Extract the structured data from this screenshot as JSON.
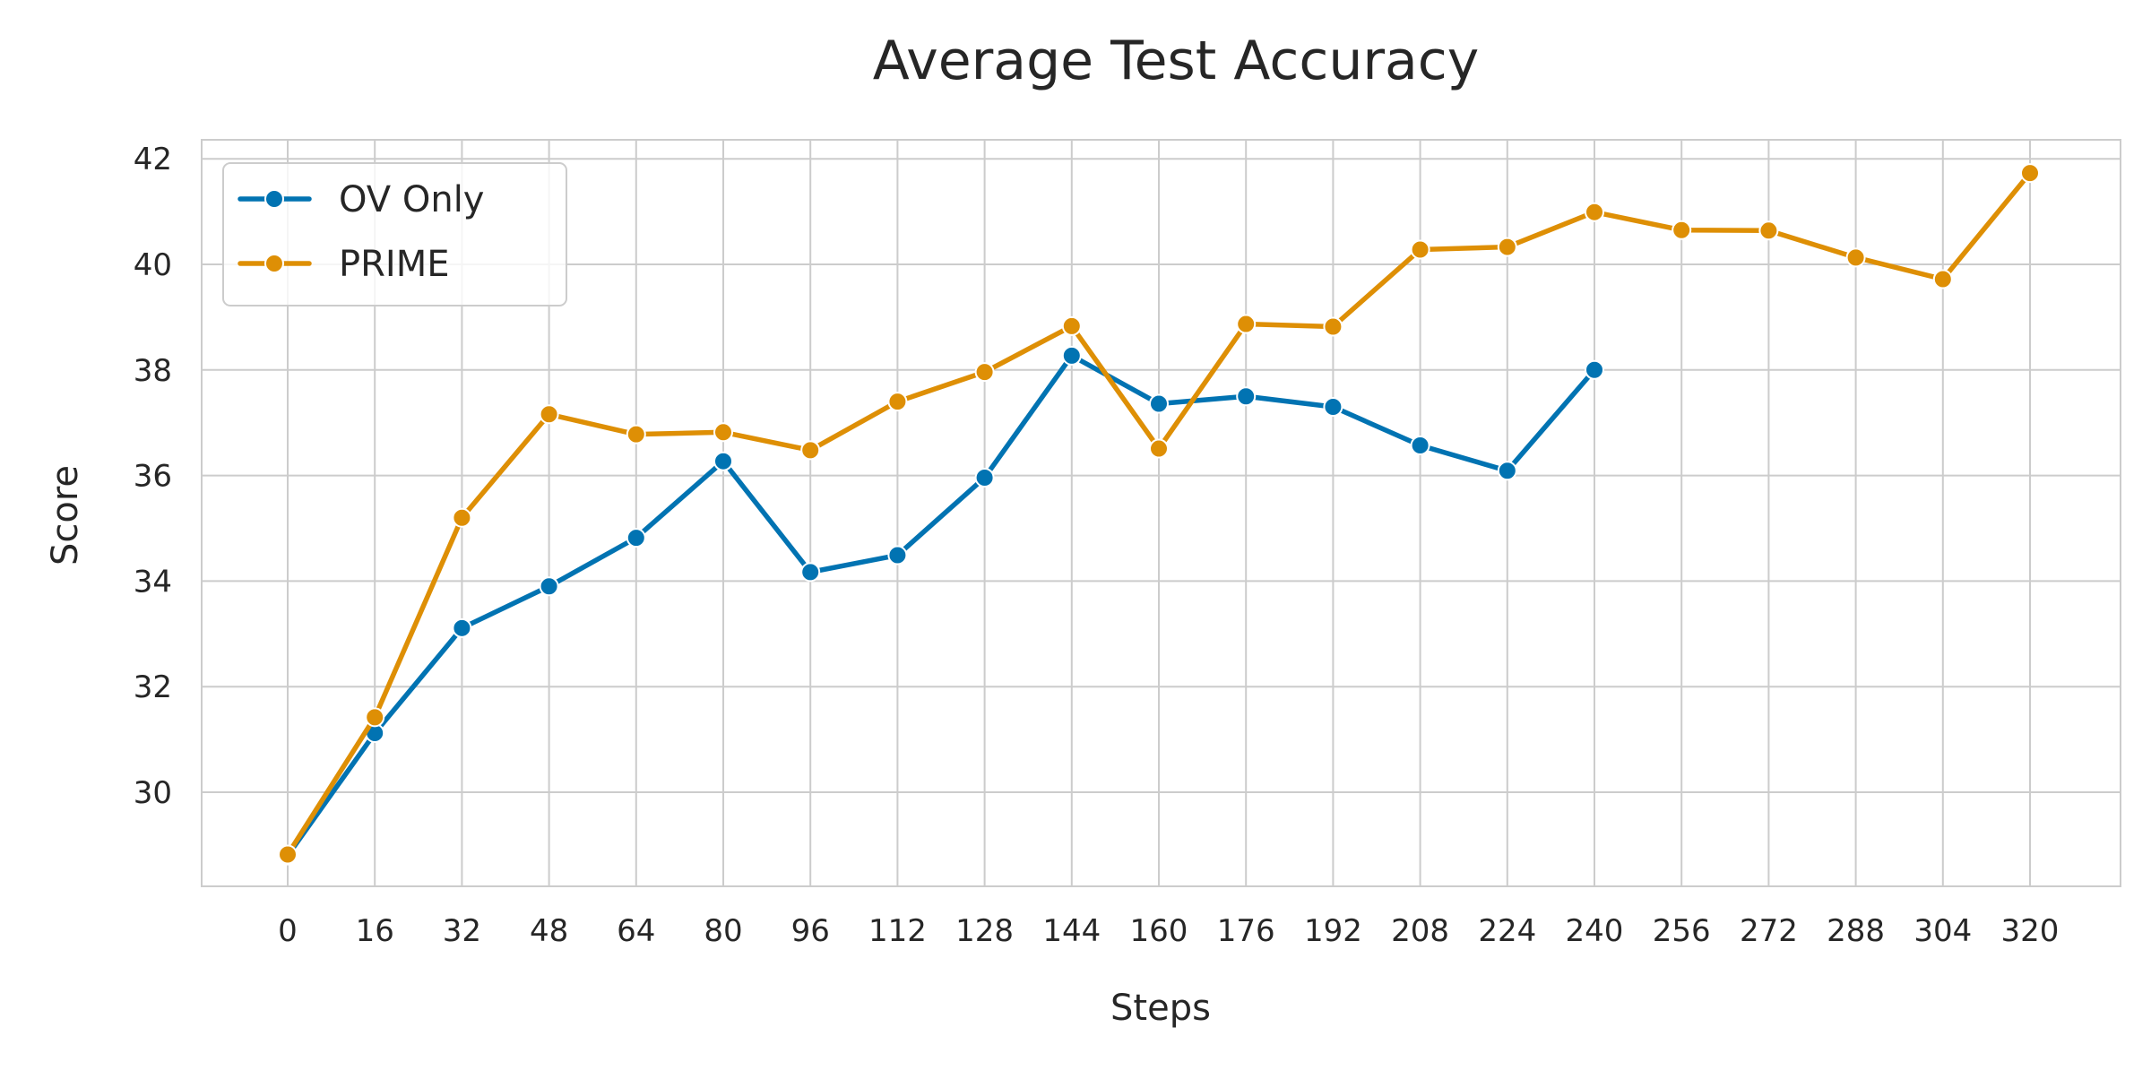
{
  "chart_data": {
    "type": "line",
    "title": "Average Test Accuracy",
    "xlabel": "Steps",
    "ylabel": "Score",
    "x": [
      0,
      16,
      32,
      48,
      64,
      80,
      96,
      112,
      128,
      144,
      160,
      176,
      192,
      208,
      224,
      240,
      256,
      272,
      288,
      304,
      320
    ],
    "xticks": [
      "0",
      "16",
      "32",
      "48",
      "64",
      "80",
      "96",
      "112",
      "128",
      "144",
      "160",
      "176",
      "192",
      "208",
      "224",
      "240",
      "256",
      "272",
      "288",
      "304",
      "320"
    ],
    "yticks": [
      "30",
      "32",
      "34",
      "36",
      "38",
      "40",
      "42"
    ],
    "ylim": [
      28.3,
      42.4
    ],
    "grid": true,
    "legend_position": "top-left",
    "series": [
      {
        "name": "OV Only",
        "color": "#0173b2",
        "marker": "circle",
        "values": [
          28.8,
          31.12,
          33.11,
          33.9,
          34.82,
          36.27,
          34.17,
          34.49,
          35.96,
          38.27,
          37.36,
          37.5,
          37.3,
          36.57,
          36.09,
          38.0,
          null,
          null,
          null,
          null,
          null
        ]
      },
      {
        "name": "PRIME",
        "color": "#de8f05",
        "marker": "circle",
        "values": [
          28.82,
          31.42,
          35.2,
          37.16,
          36.78,
          36.82,
          36.48,
          37.4,
          37.96,
          38.83,
          36.51,
          38.87,
          38.82,
          40.28,
          40.33,
          40.99,
          40.65,
          40.64,
          40.13,
          39.72,
          41.73
        ]
      }
    ]
  }
}
